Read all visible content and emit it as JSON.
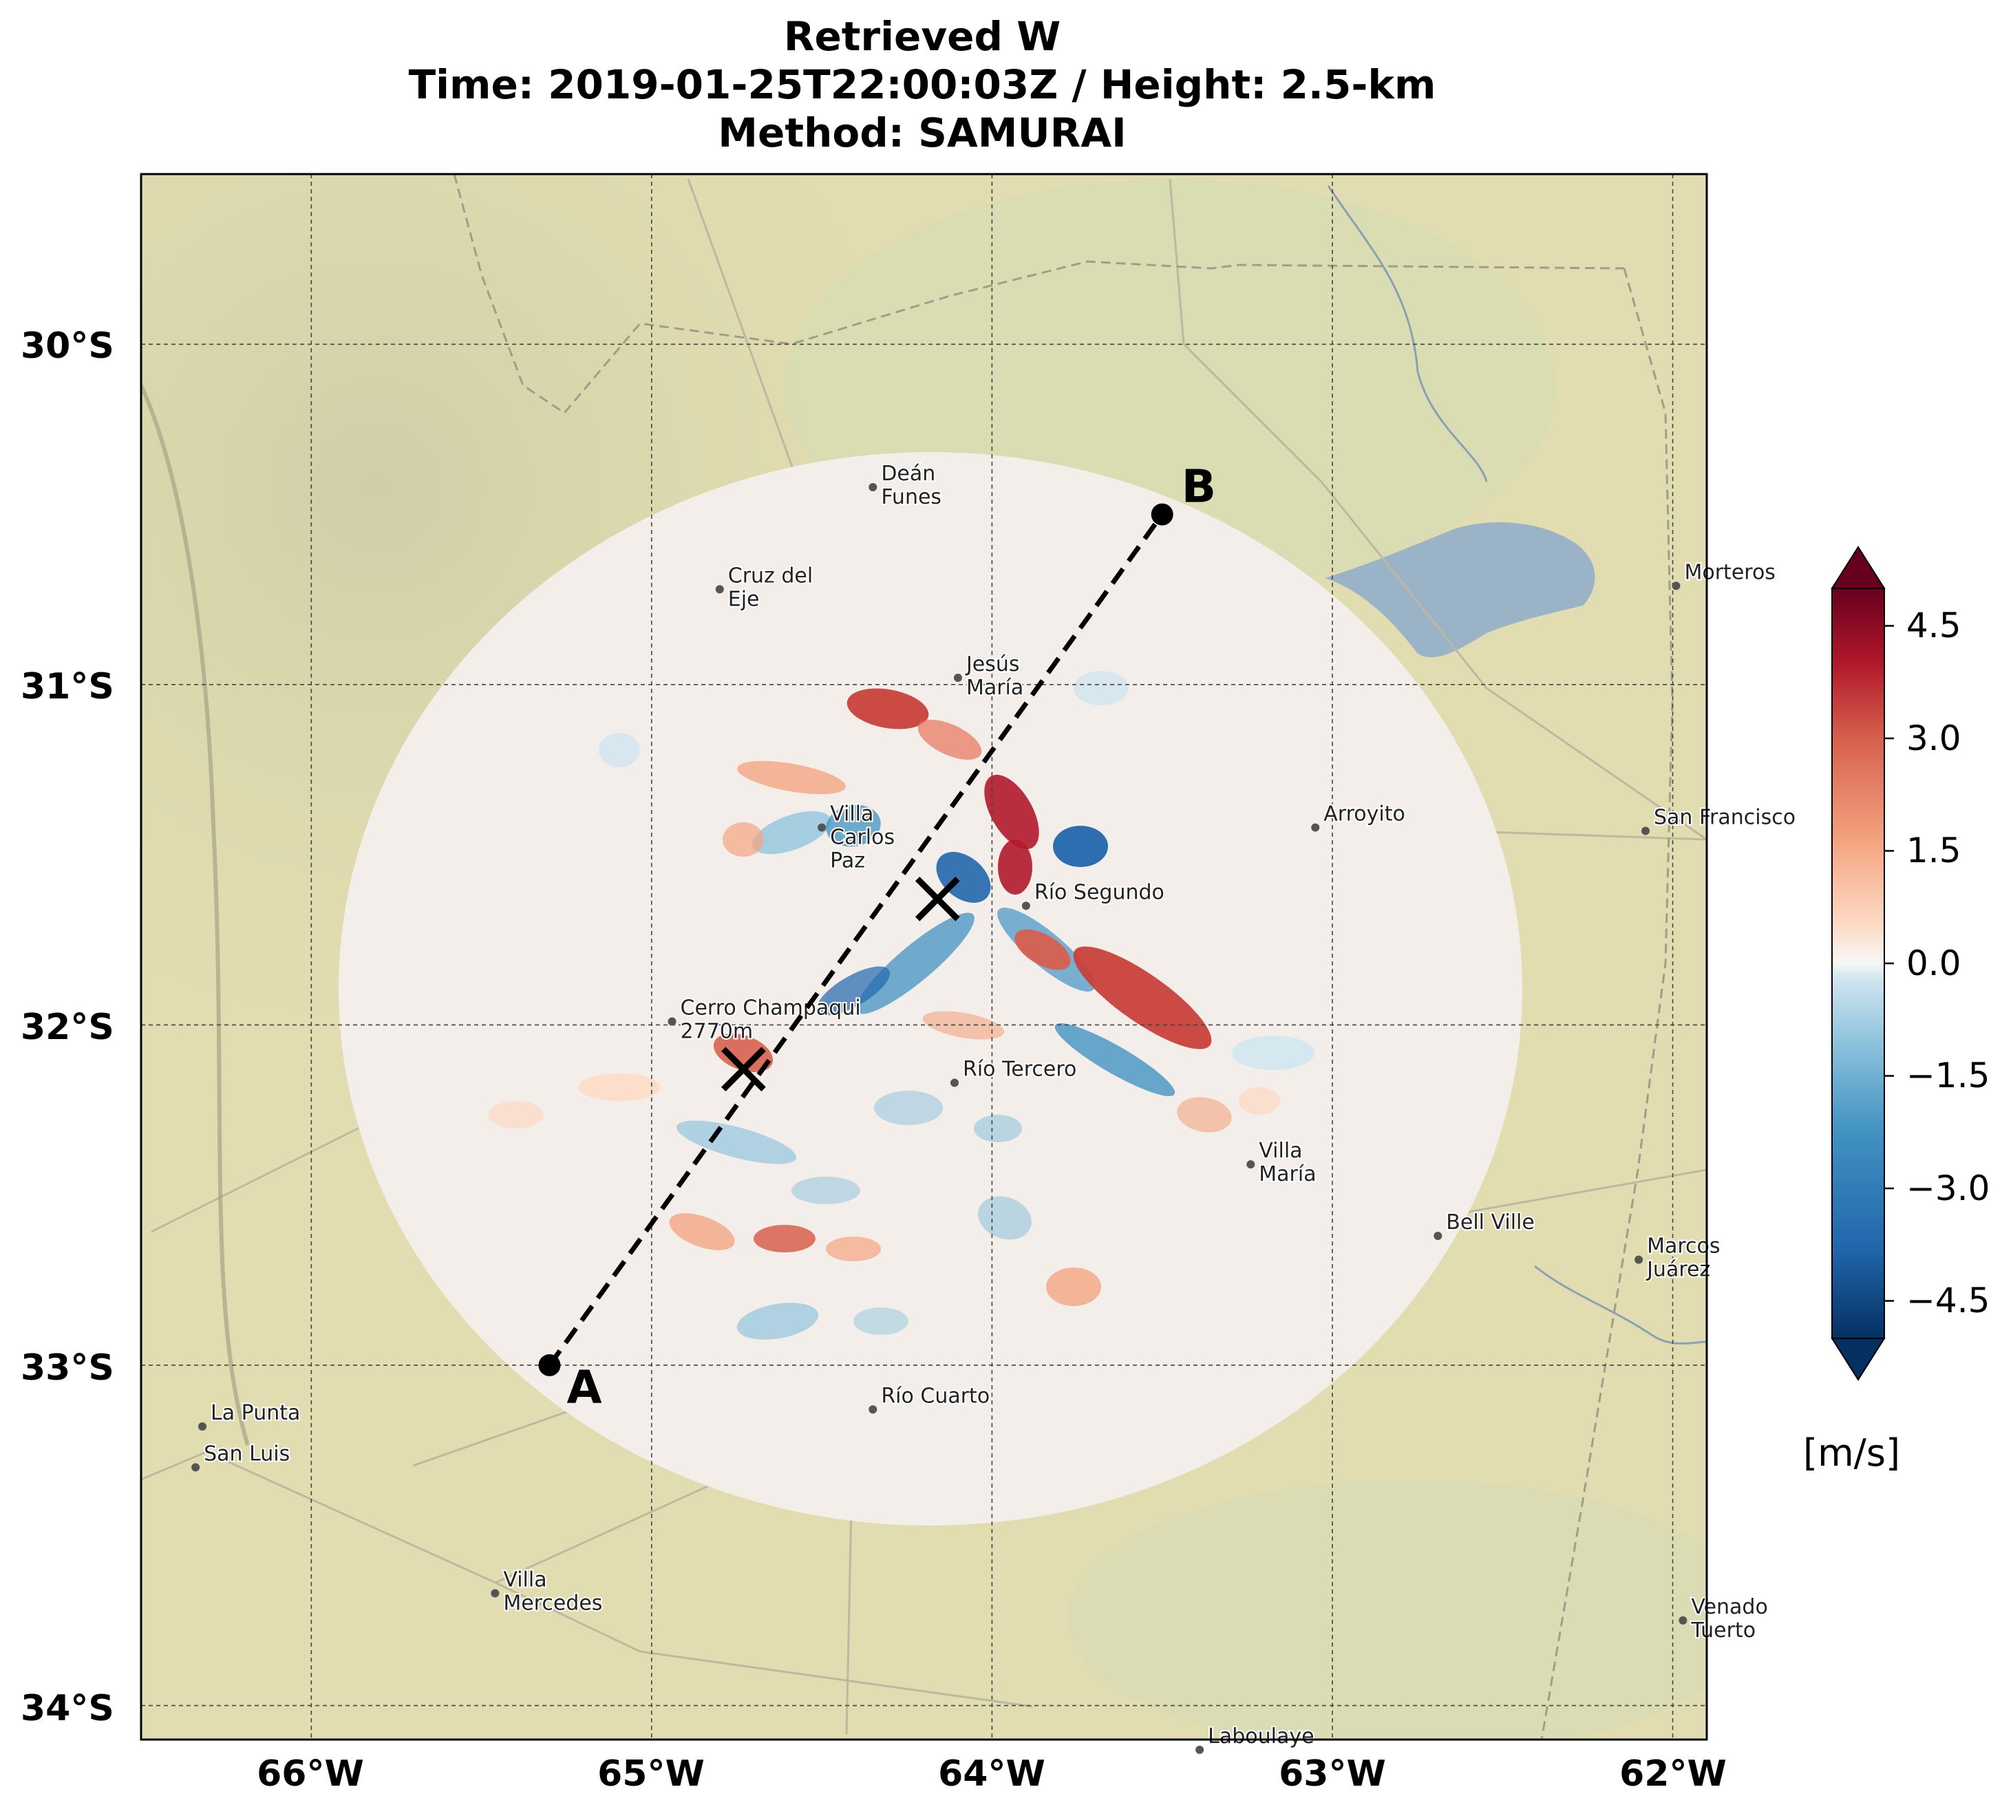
{
  "title": {
    "line1": "Retrieved W",
    "line2": "Time: 2019-01-25T22:00:03Z / Height: 2.5-km",
    "line3": "Method: SAMURAI"
  },
  "axes": {
    "lat_labels": [
      "30°S",
      "31°S",
      "32°S",
      "33°S",
      "34°S"
    ],
    "lon_labels": [
      "66°W",
      "65°W",
      "64°W",
      "63°W",
      "62°W"
    ],
    "lon_range": [
      -66.5,
      -61.9
    ],
    "lat_range": [
      -34.1,
      -29.5
    ],
    "grid": true
  },
  "colorbar": {
    "unit": "[m/s]",
    "ticks": [
      "4.5",
      "3.0",
      "1.5",
      "0.0",
      "−1.5",
      "−3.0",
      "−4.5"
    ],
    "range": [
      -5,
      5
    ],
    "colormap": "RdBu_r",
    "extend": "both"
  },
  "transect": {
    "start_label": "A",
    "end_label": "B",
    "start": {
      "lon": -65.3,
      "lat": -33.0
    },
    "end": {
      "lon": -63.5,
      "lat": -30.5
    }
  },
  "markers": [
    {
      "lon": -64.16,
      "lat": -31.63
    },
    {
      "lon": -64.73,
      "lat": -32.13
    }
  ],
  "places": [
    {
      "name": "Deán\nFunes",
      "lon": -64.35,
      "lat": -30.42
    },
    {
      "name": "Cruz del\nEje",
      "lon": -64.8,
      "lat": -30.72
    },
    {
      "name": "Jesús\nMaría",
      "lon": -64.1,
      "lat": -30.98
    },
    {
      "name": "Villa\nCarlos\nPaz",
      "lon": -64.5,
      "lat": -31.42
    },
    {
      "name": "Arroyito",
      "lon": -63.05,
      "lat": -31.42
    },
    {
      "name": "San Francisco",
      "lon": -62.08,
      "lat": -31.43
    },
    {
      "name": "Morteros",
      "lon": -61.99,
      "lat": -30.71
    },
    {
      "name": "Río Segundo",
      "lon": -63.9,
      "lat": -31.65
    },
    {
      "name": "Río Tercero",
      "lon": -64.11,
      "lat": -32.17
    },
    {
      "name": "Villa\nMaría",
      "lon": -63.24,
      "lat": -32.41
    },
    {
      "name": "Bell Ville",
      "lon": -62.69,
      "lat": -32.62
    },
    {
      "name": "Marcos\nJuárez",
      "lon": -62.1,
      "lat": -32.69
    },
    {
      "name": "Río Cuarto",
      "lon": -64.35,
      "lat": -33.13
    },
    {
      "name": "La Punta",
      "lon": -66.32,
      "lat": -33.18
    },
    {
      "name": "San Luis",
      "lon": -66.34,
      "lat": -33.3
    },
    {
      "name": "Villa\nMercedes",
      "lon": -65.46,
      "lat": -33.67
    },
    {
      "name": "Venado\nTuerto",
      "lon": -61.97,
      "lat": -33.75
    },
    {
      "name": "Laboulaye",
      "lon": -63.39,
      "lat": -34.13
    },
    {
      "name": "Cerro Champaqui\n2770m",
      "lon": -64.94,
      "lat": -31.99
    }
  ],
  "colors": {
    "land": "#e1ddb0",
    "lake": "#9bb3c6",
    "grid": "#444444",
    "transect": "#000000"
  }
}
